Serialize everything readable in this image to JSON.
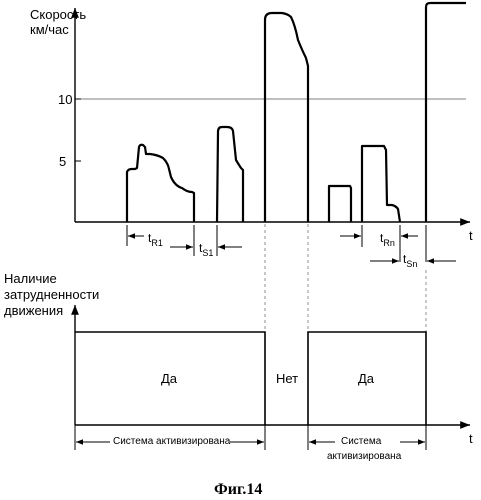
{
  "top_chart": {
    "y_axis_label_line1": "Скорость",
    "y_axis_label_line2": "км/час",
    "y_tick_10": "10",
    "y_tick_5": "5",
    "x_axis_label": "t",
    "interval_t": "t",
    "sub_R1": "R1",
    "sub_S1": "S1",
    "sub_Rn": "Rn",
    "sub_Sn": "Sn"
  },
  "bottom_chart": {
    "y_axis_label_line1": "Наличие",
    "y_axis_label_line2": "затрудненности",
    "y_axis_label_line3": "движения",
    "x_axis_label": "t",
    "state_yes_1": "Да",
    "state_no": "Нет",
    "state_yes_2": "Да",
    "system_active_1": "Система активизирована",
    "system_active_2_line1": "Система",
    "system_active_2_line2": "активизирована"
  },
  "figure_caption": "Фиг.14"
}
